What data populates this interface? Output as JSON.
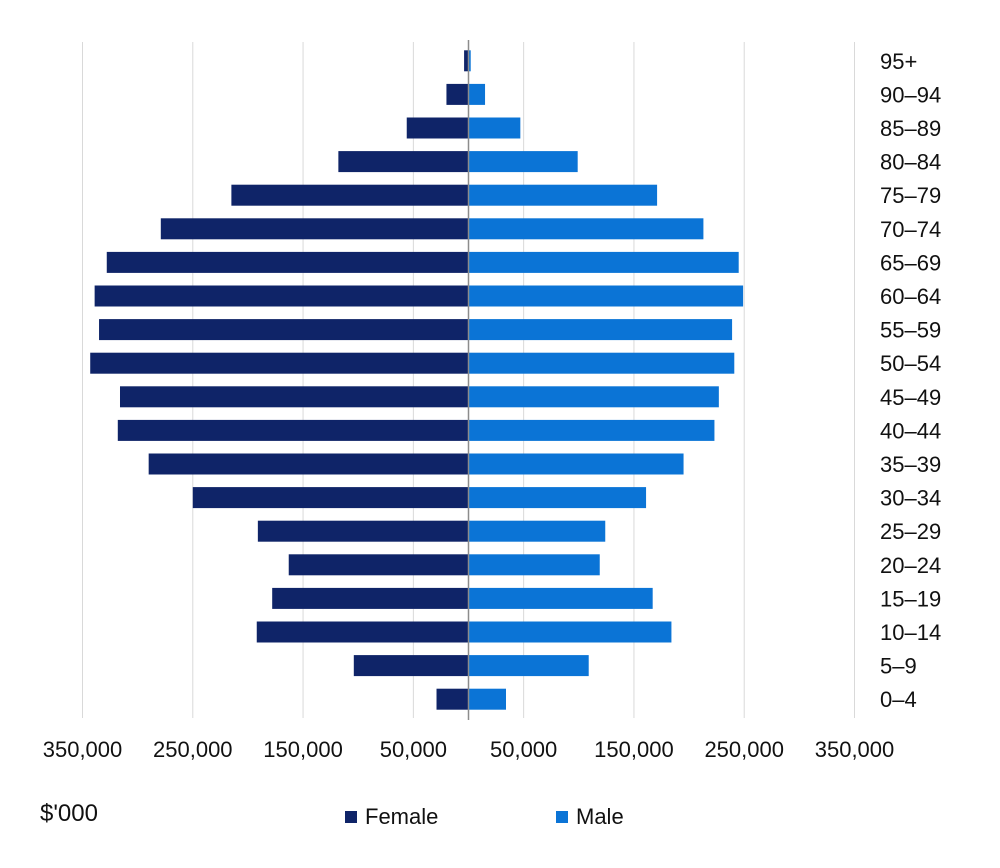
{
  "chart_data": {
    "type": "bar",
    "orientation": "horizontal",
    "subtype": "population-pyramid",
    "unit_label": "$'000",
    "categories": [
      "0–4",
      "5–9",
      "10–14",
      "15–19",
      "20–24",
      "25–29",
      "30–34",
      "35–39",
      "40–44",
      "45–49",
      "50–54",
      "55–59",
      "60–64",
      "65–69",
      "70–74",
      "75–79",
      "80–84",
      "85–89",
      "90–94",
      "95+"
    ],
    "series": [
      {
        "name": "Female",
        "color": "#0f2468",
        "values": [
          29000,
          104000,
          192000,
          178000,
          163000,
          191000,
          250000,
          290000,
          318000,
          316000,
          343000,
          335000,
          339000,
          328000,
          279000,
          215000,
          118000,
          56000,
          20000,
          4000
        ]
      },
      {
        "name": "Male",
        "color": "#0b74d6",
        "values": [
          34000,
          109000,
          184000,
          167000,
          119000,
          124000,
          161000,
          195000,
          223000,
          227000,
          241000,
          239000,
          249000,
          245000,
          213000,
          171000,
          99000,
          47000,
          15000,
          2000
        ]
      }
    ],
    "x_ticks": [
      "350,000",
      "250,000",
      "150,000",
      "50,000",
      "50,000",
      "150,000",
      "250,000",
      "350,000"
    ],
    "xlim": [
      -350000,
      350000
    ],
    "grid": true,
    "legend_position": "bottom"
  }
}
